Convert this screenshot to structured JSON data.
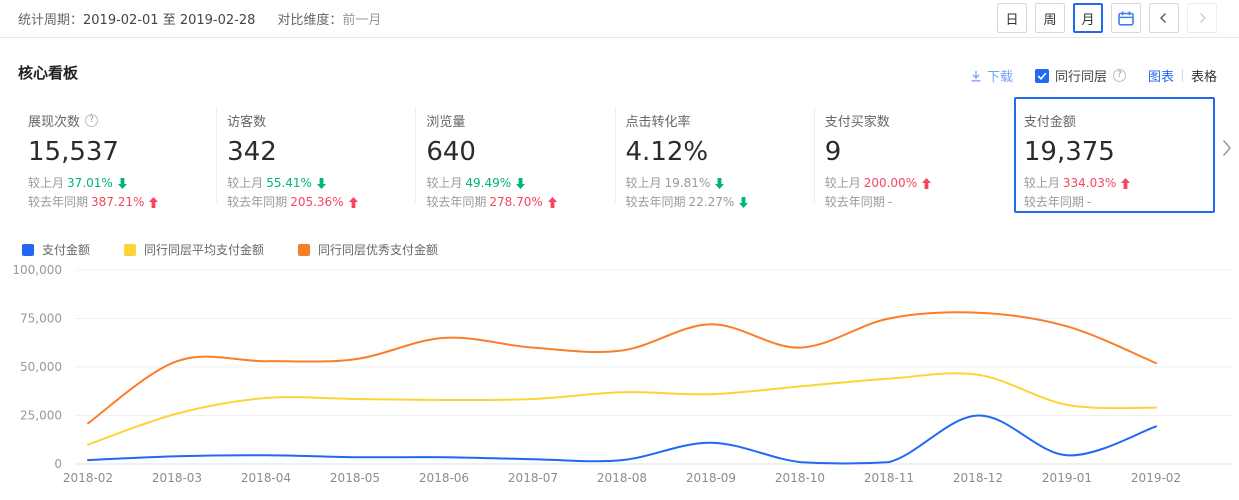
{
  "colors": {
    "accent": "#2268f2",
    "download_link": "#6fa3f8",
    "positive_red": "#f5465d",
    "negative_green": "#00b578",
    "grid_line": "#f0f0f0",
    "axis_line": "#e0e0e0",
    "axis_text": "#999999"
  },
  "header": {
    "stat_period_label": "统计周期：",
    "stat_period_value": "2019-02-01 至 2019-02-28",
    "compare_label": "对比维度：",
    "compare_value": "前一月",
    "granularity_buttons": [
      {
        "label": "日",
        "active": false
      },
      {
        "label": "周",
        "active": false
      },
      {
        "label": "月",
        "active": true
      }
    ]
  },
  "panel": {
    "title": "核心看板",
    "download_label": "下载",
    "peer_checkbox_label": "同行同层",
    "peer_checked": true,
    "chart_tab_label": "图表",
    "table_tab_label": "表格"
  },
  "cards": [
    {
      "title": "展现次数",
      "has_help": true,
      "value": "15,537",
      "selected": false,
      "rows": [
        {
          "label": "较上月",
          "value": "37.01%",
          "dir": "down",
          "tone": "green"
        },
        {
          "label": "较去年同期",
          "value": "387.21%",
          "dir": "up",
          "tone": "red"
        }
      ]
    },
    {
      "title": "访客数",
      "has_help": false,
      "value": "342",
      "selected": false,
      "rows": [
        {
          "label": "较上月",
          "value": "55.41%",
          "dir": "down",
          "tone": "green"
        },
        {
          "label": "较去年同期",
          "value": "205.36%",
          "dir": "up",
          "tone": "red"
        }
      ]
    },
    {
      "title": "浏览量",
      "has_help": false,
      "value": "640",
      "selected": false,
      "rows": [
        {
          "label": "较上月",
          "value": "49.49%",
          "dir": "down",
          "tone": "green"
        },
        {
          "label": "较去年同期",
          "value": "278.70%",
          "dir": "up",
          "tone": "red"
        }
      ]
    },
    {
      "title": "点击转化率",
      "has_help": false,
      "value": "4.12%",
      "selected": false,
      "rows": [
        {
          "label": "较上月",
          "value": "19.81%",
          "dir": "down",
          "tone": "gray"
        },
        {
          "label": "较去年同期",
          "value": "22.27%",
          "dir": "down",
          "tone": "gray"
        }
      ]
    },
    {
      "title": "支付买家数",
      "has_help": false,
      "value": "9",
      "selected": false,
      "rows": [
        {
          "label": "较上月",
          "value": "200.00%",
          "dir": "up",
          "tone": "red"
        },
        {
          "label": "较去年同期",
          "value": "-",
          "dir": null,
          "tone": "gray"
        }
      ]
    },
    {
      "title": "支付金额",
      "has_help": false,
      "value": "19,375",
      "selected": true,
      "rows": [
        {
          "label": "较上月",
          "value": "334.03%",
          "dir": "up",
          "tone": "red"
        },
        {
          "label": "较去年同期",
          "value": "-",
          "dir": null,
          "tone": "gray"
        }
      ]
    }
  ],
  "chart_data": {
    "type": "line",
    "smooth": true,
    "grid": true,
    "legend_position": "top-left",
    "x": [
      "2018-02",
      "2018-03",
      "2018-04",
      "2018-05",
      "2018-06",
      "2018-07",
      "2018-08",
      "2018-09",
      "2018-10",
      "2018-11",
      "2018-12",
      "2019-01",
      "2019-02"
    ],
    "series": [
      {
        "name": "支付金额",
        "color": "#2268f2",
        "values": [
          2000,
          4000,
          4500,
          3500,
          3500,
          2500,
          2000,
          11000,
          1000,
          1000,
          25000,
          4463,
          19375
        ]
      },
      {
        "name": "同行同层平均支付金额",
        "color": "#fbd437",
        "values": [
          10000,
          26000,
          34000,
          33500,
          33000,
          33500,
          37000,
          36000,
          40000,
          44000,
          46000,
          30500,
          29000
        ]
      },
      {
        "name": "同行同层优秀支付金额",
        "color": "#fa7d29",
        "values": [
          21000,
          53000,
          53000,
          54000,
          65000,
          60000,
          58500,
          72000,
          60000,
          75000,
          78000,
          71000,
          52000
        ]
      }
    ],
    "ylim": [
      0,
      100000
    ],
    "yticks": [
      {
        "value": 0,
        "label": "0"
      },
      {
        "value": 25000,
        "label": "25,000"
      },
      {
        "value": 50000,
        "label": "50,000"
      },
      {
        "value": 75000,
        "label": "75,000"
      },
      {
        "value": 100000,
        "label": "100,000"
      }
    ]
  }
}
